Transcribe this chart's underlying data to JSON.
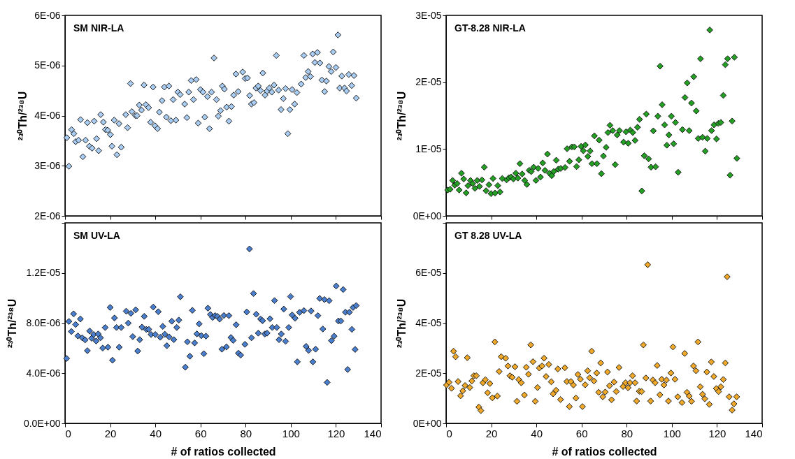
{
  "chart_data": [
    {
      "type": "scatter",
      "title": "SM NIR-LA",
      "ylabel": "²³⁰Th/²³⁸U",
      "color": "#a9cdf2",
      "marker": "diamond",
      "tick_labels": "y",
      "xlim": [
        0,
        140
      ],
      "xticks": [
        0,
        20,
        40,
        60,
        80,
        100,
        120,
        140
      ],
      "ylim": [
        2e-06,
        6e-06
      ],
      "yticks": [
        {
          "value": 2e-06,
          "label": "2E-06"
        },
        {
          "value": 3e-06,
          "label": "3E-06"
        },
        {
          "value": 4e-06,
          "label": "4E-06"
        },
        {
          "value": 5e-06,
          "label": "5E-06"
        },
        {
          "value": 6e-06,
          "label": "6E-06"
        }
      ],
      "x": [
        0.8,
        1.7,
        2.9,
        3.9,
        4.7,
        6.0,
        6.9,
        7.9,
        9.1,
        9.9,
        10.8,
        12.0,
        12.9,
        14.0,
        14.9,
        15.8,
        17.0,
        17.9,
        18.9,
        20.1,
        20.8,
        21.8,
        23.0,
        23.9,
        24.9,
        26.9,
        27.7,
        29.0,
        29.6,
        31.2,
        31.9,
        32.9,
        33.9,
        35.0,
        35.8,
        37.0,
        37.9,
        39.0,
        39.8,
        41.0,
        41.8,
        43.0,
        44.0,
        44.9,
        46.0,
        46.9,
        47.9,
        49.1,
        50.0,
        51.0,
        53.0,
        54.0,
        54.8,
        55.9,
        56.9,
        58.1,
        59.0,
        60.0,
        61.1,
        61.9,
        63.1,
        64.0,
        64.9,
        66.0,
        67.1,
        67.9,
        68.9,
        69.7,
        70.6,
        71.6,
        72.6,
        73.7,
        74.7,
        75.7,
        76.7,
        78.7,
        79.8,
        80.8,
        81.8,
        82.6,
        83.7,
        84.6,
        85.6,
        86.6,
        87.6,
        88.6,
        89.5,
        90.5,
        91.6,
        92.6,
        93.6,
        94.6,
        95.7,
        96.7,
        97.7,
        98.7,
        99.6,
        100.6,
        101.7,
        102.7,
        104.6,
        105.8,
        106.6,
        107.7,
        108.7,
        109.7,
        110.7,
        111.8,
        112.9,
        113.8,
        115.0,
        115.8,
        116.9,
        117.9,
        118.8,
        120.0,
        120.9,
        121.7,
        122.6,
        123.8,
        124.7,
        125.7,
        127,
        128,
        129
      ],
      "values": [
        3.56e-06,
        2.99e-06,
        3.72e-06,
        3.64e-06,
        3.48e-06,
        3.51e-06,
        3.92e-06,
        3.18e-06,
        3.51e-06,
        3.86e-06,
        3.39e-06,
        3.35e-06,
        3.89e-06,
        3.54e-06,
        3.3e-06,
        4.02e-06,
        3.87e-06,
        3.72e-06,
        3.71e-06,
        3.62e-06,
        3.39e-06,
        3.91e-06,
        3.22e-06,
        3.84e-06,
        3.37e-06,
        4.02e-06,
        3.76e-06,
        4.64e-06,
        4.08e-06,
        4e-06,
        4e-06,
        4.21e-06,
        4.11e-06,
        4.61e-06,
        4.22e-06,
        4.16e-06,
        3.87e-06,
        4.57e-06,
        3.8e-06,
        3.74e-06,
        4.07e-06,
        4.3e-06,
        4.57e-06,
        3.97e-06,
        4.59e-06,
        3.9e-06,
        4.32e-06,
        3.91e-06,
        4.47e-06,
        4.42e-06,
        4.23e-06,
        3.96e-06,
        4.47e-06,
        4.7e-06,
        4.32e-06,
        4.72e-06,
        3.85e-06,
        4.52e-06,
        4.47e-06,
        3.97e-06,
        4.38e-06,
        3.74e-06,
        4.47e-06,
        5.15e-06,
        4.32e-06,
        3.99e-06,
        4.1e-06,
        4.59e-06,
        4.53e-06,
        4.17e-06,
        3.89e-06,
        4.18e-06,
        4.41e-06,
        4.83e-06,
        4.48e-06,
        4.87e-06,
        4.74e-06,
        4.75e-06,
        4.4e-06,
        4.23e-06,
        4.26e-06,
        4.55e-06,
        4.59e-06,
        4.5e-06,
        4.85e-06,
        4.41e-06,
        4.49e-06,
        4.55e-06,
        4.47e-06,
        4.61e-06,
        5.2e-06,
        4.51e-06,
        4.12e-06,
        4.34e-06,
        4.54e-06,
        3.64e-06,
        4.12e-06,
        4.52e-06,
        4.23e-06,
        4.46e-06,
        4.63e-06,
        5.2e-06,
        4.76e-06,
        4.88e-06,
        4.78e-06,
        5.23e-06,
        5.06e-06,
        5.26e-06,
        5.05e-06,
        4.71e-06,
        4.48e-06,
        4.69e-06,
        4.98e-06,
        4.88e-06,
        5.27e-06,
        4.96e-06,
        5.61e-06,
        4.55e-06,
        4.79e-06,
        4.55e-06,
        4.49e-06,
        4.82e-06,
        4.6e-06,
        4.8e-06,
        4.35e-06
      ]
    },
    {
      "type": "scatter",
      "title": "GT-8.28 NIR-LA",
      "ylabel": "²³⁰Th/²³⁸U",
      "color": "#23a023",
      "marker": "diamond",
      "tick_labels": "y",
      "xlim": [
        0,
        140
      ],
      "xticks": [
        0,
        20,
        40,
        60,
        80,
        100,
        120,
        140
      ],
      "ylim": [
        0,
        3e-05
      ],
      "yticks": [
        {
          "value": 0,
          "label": "0E+00"
        },
        {
          "value": 1e-05,
          "label": "1E-05"
        },
        {
          "value": 2e-05,
          "label": "2E-05"
        },
        {
          "value": 3e-05,
          "label": "3E-05"
        }
      ],
      "x": [
        0.7,
        1.8,
        2.9,
        3.8,
        4.9,
        5.8,
        6.8,
        7.8,
        8.9,
        9.7,
        10.8,
        11.8,
        12.8,
        13.8,
        14.8,
        15.9,
        16.9,
        17.7,
        19.0,
        19.9,
        20.8,
        21.7,
        22.9,
        23.9,
        24.9,
        26.8,
        27.8,
        28.8,
        29.8,
        30.9,
        31.8,
        32.7,
        33.7,
        34.8,
        35.8,
        36.8,
        37.7,
        38.8,
        39.8,
        40.8,
        41.8,
        42.8,
        43.8,
        44.9,
        45.8,
        46.8,
        47.7,
        48.8,
        49.7,
        50.8,
        52.7,
        53.6,
        54.7,
        55.7,
        56.8,
        57.8,
        58.8,
        59.8,
        60.8,
        61.7,
        62.8,
        63.8,
        64.6,
        65.7,
        66.8,
        67.8,
        68.8,
        69.7,
        70.9,
        71.7,
        72.6,
        73.8,
        74.9,
        75.8,
        76.8,
        78.6,
        79.7,
        80.7,
        81.6,
        82.7,
        83.7,
        84.8,
        85.7,
        86.7,
        87.8,
        88.7,
        89.7,
        90.8,
        91.8,
        92.8,
        93.8,
        94.8,
        95.7,
        96.8,
        97.8,
        98.7,
        99.8,
        100.8,
        101.6,
        102.8,
        104.7,
        105.8,
        106.8,
        107.7,
        108.7,
        109.7,
        110.8,
        111.7,
        112.7,
        113.6,
        114.8,
        115.7,
        116.8,
        117.6,
        118.7,
        119.8,
        120.6,
        121.7,
        122.8,
        123.7,
        124.7,
        125.8,
        126.7,
        127.7,
        128.8
      ],
      "values": [
        3.87e-06,
        3.98e-06,
        5.3e-06,
        4.59e-06,
        4.84e-06,
        3.87e-06,
        6.38e-06,
        5.52e-06,
        3.44e-06,
        4.52e-06,
        5.3e-06,
        4.84e-06,
        4.12e-06,
        5.3e-06,
        4.41e-06,
        5.38e-06,
        7.28e-06,
        3.76e-06,
        4.66e-06,
        3.33e-06,
        5.59e-06,
        3.41e-06,
        4.52e-06,
        3.58e-06,
        5.59e-06,
        5.38e-06,
        5.7e-06,
        5.81e-06,
        5.52e-06,
        6.38e-06,
        5.66e-06,
        7.81e-06,
        6.27e-06,
        5.3e-06,
        4.7e-06,
        6.81e-06,
        6.63e-06,
        7.28e-06,
        5.3e-06,
        7.1e-06,
        5.81e-06,
        7.92e-06,
        6.81e-06,
        9.25e-06,
        6.38e-06,
        6.02e-06,
        6.63e-06,
        8.32e-06,
        6.99e-06,
        7.1e-06,
        7.24e-06,
        1.004e-05,
        8.17e-06,
        1.032e-05,
        1.032e-05,
        7.38e-06,
        8.39e-06,
        1.039e-05,
        9.75e-06,
        1.061e-05,
        8.89e-06,
        9.71e-06,
        7.81e-06,
        1.197e-05,
        7.81e-06,
        1.133e-05,
        6.31e-06,
        8.96e-06,
        1.025e-05,
        1.247e-05,
        1.355e-05,
        1.276e-05,
        7.67e-06,
        1.211e-05,
        1.276e-05,
        1.104e-05,
        1.258e-05,
        1.086e-05,
        1.283e-05,
        1.247e-05,
        1.129e-05,
        1.326e-05,
        1.444e-05,
        3.73e-06,
        9e-06,
        1.523e-05,
        8.53e-06,
        7.28e-06,
        1.272e-05,
        7.35e-06,
        1.491e-05,
        2.24e-05,
        1.663e-05,
        1.362e-05,
        1.057e-05,
        1.211e-05,
        1.491e-05,
        1.079e-05,
        1.398e-05,
        6.52e-06,
        1.29e-05,
        1.771e-05,
        1.989e-05,
        1.276e-05,
        1.688e-05,
        2.082e-05,
        1.57e-05,
        1.158e-05,
        2.351e-05,
        1.176e-05,
        9.68e-06,
        1.158e-05,
        2.781e-05,
        1.276e-05,
        1.362e-05,
        1.151e-05,
        1.384e-05,
        1.398e-05,
        1.803e-05,
        2.262e-05,
        2.351e-05,
        6.09e-06,
        1.419e-05,
        2.373e-05,
        8.6e-06
      ]
    },
    {
      "type": "scatter",
      "title": "SM UV-LA",
      "ylabel": "²³⁰Th/²³⁸U",
      "xlabel": "# of ratios collected",
      "color": "#4a7fcf",
      "marker": "diamond",
      "xlim": [
        0,
        140
      ],
      "xticks": [
        0,
        20,
        40,
        60,
        80,
        100,
        120,
        140
      ],
      "ylim": [
        0,
        1.6e-05
      ],
      "yticks": [
        {
          "value": 0,
          "label": "0.0E+00"
        },
        {
          "value": 4e-06,
          "label": "4.0E-06"
        },
        {
          "value": 8e-06,
          "label": "8.0E-06"
        },
        {
          "value": 1.2e-05,
          "label": "1.2E-05"
        },
        {
          "value": 1.6e-05,
          "label": null
        }
      ],
      "x": [
        0.7,
        1.7,
        2.8,
        3.8,
        4.7,
        5.7,
        6.8,
        7.6,
        8.9,
        9.9,
        10.9,
        11.8,
        12.7,
        13.8,
        14.7,
        15.7,
        16.7,
        17.8,
        19.0,
        20.0,
        21.0,
        21.9,
        22.8,
        24.0,
        24.9,
        27.1,
        28.0,
        29.2,
        30.0,
        31.3,
        32.2,
        33.1,
        34.1,
        35.1,
        36.0,
        37.1,
        38.1,
        39.1,
        40.0,
        41.3,
        42.2,
        43.3,
        44.2,
        45.1,
        46.1,
        47.3,
        48.2,
        49.5,
        50.4,
        51.1,
        53.3,
        54.2,
        55.3,
        56.4,
        57.4,
        58.4,
        59.4,
        60.4,
        61.5,
        62.4,
        63.3,
        64.4,
        65.4,
        66.5,
        67.5,
        68.5,
        69.5,
        70.4,
        71.5,
        72.6,
        73.5,
        74.5,
        75.8,
        76.8,
        77.8,
        79.7,
        80.5,
        81.7,
        82.6,
        83.5,
        84.7,
        85.6,
        86.6,
        87.5,
        88.5,
        89.5,
        90.8,
        91.8,
        92.8,
        93.8,
        94.8,
        95.8,
        96.9,
        97.7,
        99.1,
        99.9,
        100.6,
        101.9,
        102.9,
        103.9,
        105.8,
        106.8,
        107.9,
        109.0,
        109.8,
        111.0,
        112.0,
        112.8,
        114.2,
        114.9,
        116.1,
        117.0,
        118.0,
        119.2,
        120.1,
        121.1,
        122.2,
        123.2,
        124.2,
        125.2,
        126.0,
        127.1,
        127.6,
        128.5,
        129
      ],
      "values": [
        5.18e-06,
        8.13e-06,
        7.33e-06,
        8.74e-06,
        7.89e-06,
        6.98e-06,
        8.33e-06,
        6.83e-06,
        6.66e-06,
        5.8e-06,
        7.37e-06,
        6.79e-06,
        7.09e-06,
        6.57e-06,
        7.13e-06,
        6.83e-06,
        6.01e-06,
        7.65e-06,
        6.08e-06,
        9.25e-06,
        5.04e-06,
        8.41e-06,
        7.65e-06,
        6.08e-06,
        7.65e-06,
        8.95e-06,
        8e-06,
        8.78e-06,
        6.92e-06,
        9.06e-06,
        5.77e-06,
        6.68e-06,
        7.68e-06,
        8.54e-06,
        7.5e-06,
        7.5e-06,
        7.09e-06,
        9.28e-06,
        7.09e-06,
        8.91e-06,
        6.87e-06,
        7.74e-06,
        7.11e-06,
        6.2e-06,
        6.9e-06,
        8.15e-06,
        6.68e-06,
        7.65e-06,
        8.24e-06,
        1.01e-05,
        4.48e-06,
        6.51e-06,
        5.36e-06,
        9.02e-06,
        6.42e-06,
        7.14e-06,
        7.94e-06,
        7e-06,
        5.56e-06,
        6.96e-06,
        9.19e-06,
        8.69e-06,
        8.45e-06,
        8.6e-06,
        8.54e-06,
        8.32e-06,
        5.92e-06,
        8.61e-06,
        6.1e-06,
        8.6e-06,
        6.85e-06,
        6.62e-06,
        7.87e-06,
        5.6e-06,
        5.45e-06,
        6.31e-06,
        8.89e-06,
        1.392e-05,
        6.83e-06,
        1.036e-05,
        8.71e-06,
        7.2e-06,
        8.33e-06,
        8.19e-06,
        7.13e-06,
        7.2e-06,
        8.35e-06,
        7.65e-06,
        9.8e-06,
        7.65e-06,
        6.68e-06,
        7.13e-06,
        9.12e-06,
        6.55e-06,
        7.65e-06,
        1.012e-05,
        8.65e-06,
        8.39e-06,
        4.91e-06,
        8.86e-06,
        9e-06,
        6.14e-06,
        5.82e-06,
        8.97e-06,
        4.91e-06,
        5.92e-06,
        8.6e-06,
        9.97e-06,
        7.53e-06,
        9.88e-06,
        3.27e-06,
        9.79e-06,
        6.6e-06,
        6.96e-06,
        1.096e-05,
        8.17e-06,
        8.17e-06,
        1.068e-05,
        8.87e-06,
        4.3e-06,
        8.87e-06,
        7.5e-06,
        9.25e-06,
        5.9e-06,
        9.4e-06
      ]
    },
    {
      "type": "scatter",
      "title": "GT 8.28 UV-LA",
      "ylabel": "²³⁰Th/²³⁸U",
      "xlabel": "# of ratios collected",
      "color": "#f0a828",
      "marker": "diamond",
      "xlim": [
        0,
        140
      ],
      "xticks": [
        0,
        20,
        40,
        60,
        80,
        100,
        120,
        140
      ],
      "ylim": [
        0,
        8e-05
      ],
      "yticks": [
        {
          "value": 0,
          "label": "0E+00"
        },
        {
          "value": 2e-05,
          "label": "2E-05"
        },
        {
          "value": 4e-05,
          "label": "4E-05"
        },
        {
          "value": 6e-05,
          "label": "6E-05"
        },
        {
          "value": 8e-05,
          "label": null
        }
      ],
      "x": [
        0.2,
        1.3,
        2.4,
        3.3,
        4.2,
        5.3,
        6.4,
        7.4,
        8.4,
        9.4,
        10.5,
        11.4,
        12.3,
        13.4,
        14.5,
        15.4,
        16.3,
        17.4,
        18.4,
        19.4,
        20.5,
        21.6,
        22.7,
        23.5,
        24.4,
        26.4,
        27.4,
        28.3,
        29.3,
        30.5,
        31.4,
        32.2,
        33.3,
        34.7,
        35.5,
        36.5,
        37.5,
        38.5,
        39.5,
        40.5,
        41.3,
        42.5,
        43.4,
        44.3,
        45.5,
        46.6,
        47.4,
        48.7,
        49.5,
        50.7,
        52.6,
        53.5,
        54.6,
        55.3,
        56.4,
        57.5,
        58.4,
        59.5,
        60.4,
        61.6,
        62.7,
        63.6,
        64.5,
        65.5,
        66.7,
        67.6,
        68.5,
        69.4,
        70.5,
        71.5,
        72.4,
        73.3,
        74.4,
        75.4,
        76.6,
        78.4,
        79.5,
        80.6,
        81.5,
        82.6,
        83.7,
        84.4,
        85.6,
        86.6,
        87.4,
        88.5,
        89.3,
        90.6,
        91.6,
        92.6,
        93.5,
        94.7,
        95.5,
        96.5,
        97.6,
        98.5,
        99.6,
        100.5,
        101.4,
        102.6,
        104.5,
        105.7,
        106.7,
        107.7,
        108.7,
        109.6,
        110.7,
        111.6,
        112.6,
        113.6,
        114.6,
        115.5,
        116.6,
        117.5,
        118.6,
        119.7,
        120.7,
        121.7,
        122.8,
        123.7,
        124.5,
        125.4,
        126.7,
        127.5,
        128.7
      ],
      "values": [
        1.53e-05,
        1.64e-05,
        1.4e-05,
        2.88e-05,
        2.66e-05,
        1.67e-05,
        1.1e-05,
        1.3e-05,
        1.51e-05,
        2.62e-05,
        1.43e-05,
        1.69e-05,
        1.9e-05,
        1.9e-05,
        6.5e-06,
        5.1e-06,
        1.62e-05,
        1.74e-05,
        1.22e-05,
        1.59e-05,
        1.02e-05,
        3.25e-05,
        1.09e-05,
        2.07e-05,
        2.66e-05,
        2.6e-05,
        2.29e-05,
        1.9e-05,
        1.84e-05,
        2.26e-05,
        8.8e-06,
        1.75e-05,
        1.62e-05,
        1.13e-05,
        2.24e-05,
        1.96e-05,
        3.13e-05,
        2.46e-05,
        8.8e-06,
        1.43e-05,
        2.21e-05,
        2.29e-05,
        2.6e-05,
        1.87e-05,
        2.35e-05,
        1.66e-05,
        1.18e-05,
        1.32e-05,
        2.17e-05,
        9.5e-06,
        2.22e-05,
        1.67e-05,
        6.7e-06,
        1.67e-05,
        1.53e-05,
        1.01e-05,
        1.95e-05,
        1.76e-05,
        6.7e-06,
        1.54e-05,
        2.1e-05,
        1.82e-05,
        2.88e-05,
        1.69e-05,
        2.01e-05,
        1.24e-05,
        2.41e-05,
        1.06e-05,
        1.25e-05,
        2.05e-05,
        1.5e-05,
        9.4e-06,
        1.65e-05,
        1.27e-05,
        2.23e-05,
        1.47e-05,
        1.62e-05,
        1.42e-05,
        1.62e-05,
        1.9e-05,
        1.62e-05,
        8.9e-06,
        1.28e-05,
        1.27e-05,
        3.13e-05,
        1.81e-05,
        6.33e-05,
        8.9e-06,
        1.73e-05,
        1.62e-05,
        2.31e-05,
        1.14e-05,
        1.76e-05,
        1.53e-05,
        1.73e-05,
        8.9e-06,
        2.01e-05,
        3.05e-05,
        1.76e-05,
        1.06e-05,
        8.3e-06,
        2.79e-05,
        1.24e-05,
        1.09e-05,
        8.8e-06,
        2.29e-05,
        2.1e-05,
        3.25e-05,
        1.46e-05,
        1.16e-05,
        9.8e-06,
        2.05e-05,
        7.6e-06,
        2.45e-05,
        1.87e-05,
        1.39e-05,
        1.27e-05,
        1.46e-05,
        1.75e-05,
        2.41e-05,
        5.85e-05,
        1.06e-05,
        5.3e-06,
        7.8e-06,
        1.06e-05
      ]
    }
  ]
}
